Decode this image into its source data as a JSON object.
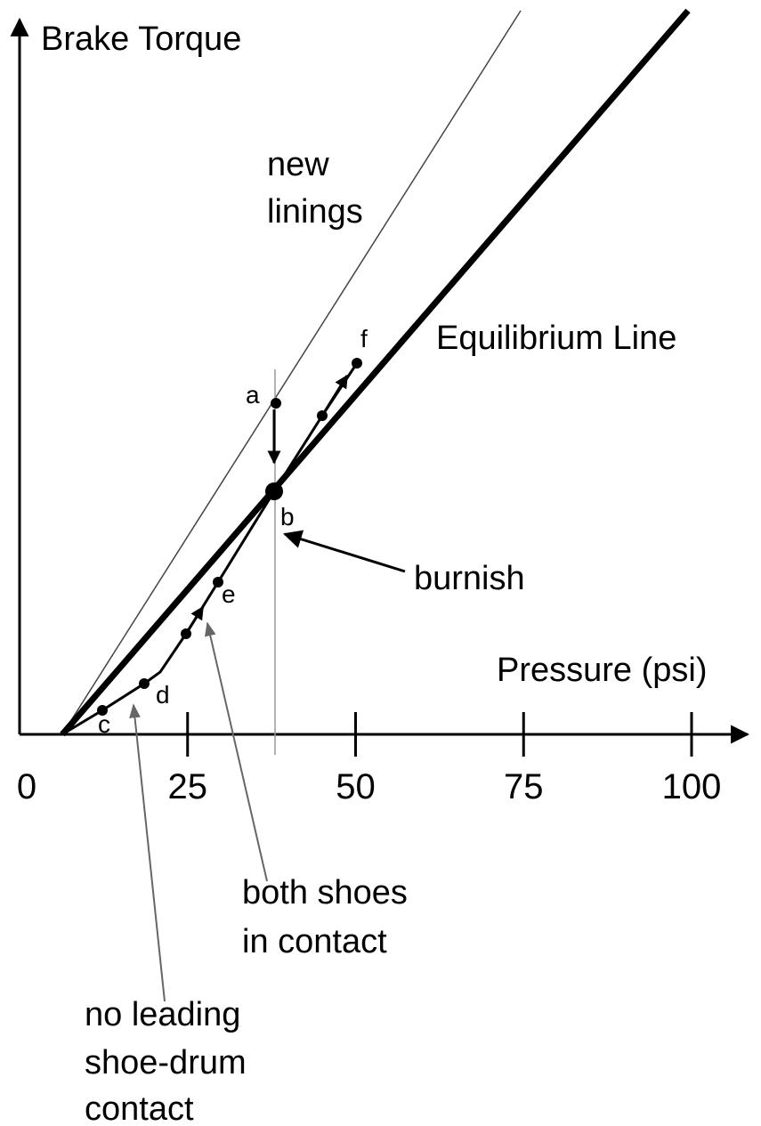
{
  "y_axis": {
    "label": "Brake Torque"
  },
  "x_axis": {
    "label": "Pressure (psi)",
    "ticks": [
      0,
      25,
      50,
      75,
      100
    ]
  },
  "lines": {
    "new": [
      "new",
      "linings"
    ],
    "equilibrium": "Equilibrium Line"
  },
  "points": {
    "a": "a",
    "b": "b",
    "c": "c",
    "d": "d",
    "e": "e",
    "f": "f"
  },
  "annotations": {
    "burnish": "burnish",
    "both": [
      "both shoes",
      "in contact"
    ],
    "none": [
      "no leading",
      "shoe-drum",
      "contact"
    ]
  }
}
